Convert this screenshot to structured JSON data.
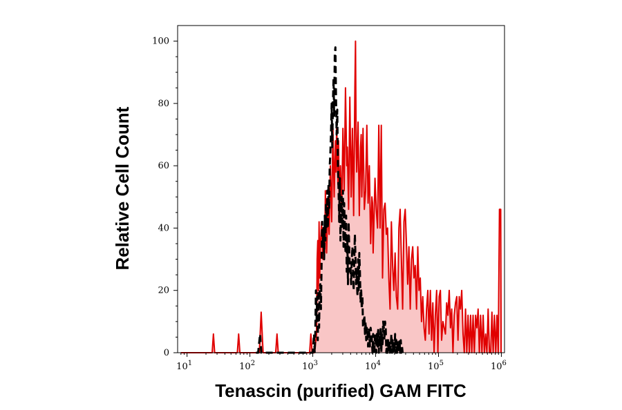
{
  "chart_data": {
    "type": "area",
    "xlabel": "Tenascin (purified) GAM FITC",
    "ylabel": "Relative Cell Count",
    "x_scale": "log",
    "xlim_log10": [
      0.85,
      6.05
    ],
    "ylim": [
      0,
      105
    ],
    "y_ticks": [
      0,
      20,
      40,
      60,
      80,
      100
    ],
    "x_ticks": [
      {
        "value": 10,
        "base": "10",
        "exp": "1"
      },
      {
        "value": 100,
        "base": "10",
        "exp": "2"
      },
      {
        "value": 1000,
        "base": "10",
        "exp": "3"
      },
      {
        "value": 10000,
        "base": "10",
        "exp": "4"
      },
      {
        "value": 100000,
        "base": "10",
        "exp": "5"
      },
      {
        "value": 1000000,
        "base": "10",
        "exp": "6"
      }
    ],
    "series": [
      {
        "style": "sample",
        "color": "#e00000",
        "fill": "#f9c6c6",
        "points": [
          [
            7.94,
            0
          ],
          [
            25.1,
            0
          ],
          [
            26.3,
            6
          ],
          [
            27.5,
            0
          ],
          [
            63.1,
            0
          ],
          [
            66.1,
            6
          ],
          [
            69.2,
            0
          ],
          [
            141,
            0
          ],
          [
            151,
            13
          ],
          [
            162,
            0
          ],
          [
            257,
            0
          ],
          [
            270,
            6
          ],
          [
            282,
            0
          ],
          [
            891,
            0
          ],
          [
            933,
            6
          ],
          [
            977,
            0
          ],
          [
            1070,
            0
          ],
          [
            1148,
            6
          ],
          [
            1175,
            30
          ],
          [
            1202,
            36
          ],
          [
            1230,
            20
          ],
          [
            1259,
            42
          ],
          [
            1288,
            24
          ],
          [
            1318,
            34
          ],
          [
            1380,
            42
          ],
          [
            1445,
            30
          ],
          [
            1479,
            38
          ],
          [
            1549,
            32
          ],
          [
            1585,
            52
          ],
          [
            1660,
            32
          ],
          [
            1738,
            48
          ],
          [
            1820,
            38
          ],
          [
            1905,
            60
          ],
          [
            1995,
            42
          ],
          [
            2089,
            72
          ],
          [
            2188,
            50
          ],
          [
            2291,
            68
          ],
          [
            2344,
            58
          ],
          [
            2399,
            73
          ],
          [
            2512,
            54
          ],
          [
            2570,
            68
          ],
          [
            2630,
            48
          ],
          [
            2754,
            60
          ],
          [
            2884,
            45
          ],
          [
            3020,
            72
          ],
          [
            3162,
            52
          ],
          [
            3311,
            85
          ],
          [
            3467,
            60
          ],
          [
            3548,
            66
          ],
          [
            3715,
            46
          ],
          [
            3890,
            82
          ],
          [
            4074,
            50
          ],
          [
            4266,
            72
          ],
          [
            4467,
            44
          ],
          [
            4677,
            85
          ],
          [
            4786,
            100
          ],
          [
            4898,
            68
          ],
          [
            5012,
            58
          ],
          [
            5248,
            74
          ],
          [
            5495,
            44
          ],
          [
            5754,
            66
          ],
          [
            5888,
            70
          ],
          [
            6026,
            50
          ],
          [
            6310,
            72
          ],
          [
            6607,
            46
          ],
          [
            6918,
            52
          ],
          [
            7244,
            73
          ],
          [
            7586,
            48
          ],
          [
            7943,
            60
          ],
          [
            8318,
            35
          ],
          [
            8710,
            50
          ],
          [
            8913,
            48
          ],
          [
            9120,
            32
          ],
          [
            9772,
            56
          ],
          [
            10233,
            46
          ],
          [
            10715,
            40
          ],
          [
            11220,
            73
          ],
          [
            11749,
            40
          ],
          [
            12303,
            73
          ],
          [
            12882,
            24
          ],
          [
            13490,
            46
          ],
          [
            14125,
            48
          ],
          [
            14791,
            38
          ],
          [
            15488,
            40
          ],
          [
            16218,
            24
          ],
          [
            16982,
            14
          ],
          [
            17783,
            42
          ],
          [
            18621,
            28
          ],
          [
            19498,
            20
          ],
          [
            20417,
            32
          ],
          [
            21380,
            18
          ],
          [
            22387,
            14
          ],
          [
            23442,
            40
          ],
          [
            24547,
            46
          ],
          [
            25704,
            30
          ],
          [
            26915,
            14
          ],
          [
            28184,
            42
          ],
          [
            29512,
            46
          ],
          [
            30903,
            35
          ],
          [
            32359,
            22
          ],
          [
            33884,
            34
          ],
          [
            35481,
            14
          ],
          [
            37154,
            30
          ],
          [
            38905,
            34
          ],
          [
            40738,
            24
          ],
          [
            42658,
            28
          ],
          [
            44668,
            14
          ],
          [
            46774,
            34
          ],
          [
            48978,
            20
          ],
          [
            51286,
            24
          ],
          [
            53703,
            10
          ],
          [
            56234,
            18
          ],
          [
            58884,
            8
          ],
          [
            61660,
            4
          ],
          [
            64565,
            14
          ],
          [
            67608,
            20
          ],
          [
            70795,
            6
          ],
          [
            74131,
            20
          ],
          [
            77625,
            4
          ],
          [
            81283,
            16
          ],
          [
            85114,
            0
          ],
          [
            89125,
            12
          ],
          [
            93325,
            20
          ],
          [
            97724,
            0
          ],
          [
            102329,
            18
          ],
          [
            107152,
            20
          ],
          [
            112202,
            4
          ],
          [
            117490,
            10
          ],
          [
            123027,
            8
          ],
          [
            128825,
            6
          ],
          [
            134896,
            16
          ],
          [
            141254,
            12
          ],
          [
            147911,
            20
          ],
          [
            154882,
            8
          ],
          [
            162181,
            14
          ],
          [
            169824,
            0
          ],
          [
            177828,
            12
          ],
          [
            186209,
            16
          ],
          [
            194984,
            18
          ],
          [
            204174,
            4
          ],
          [
            213796,
            18
          ],
          [
            223872,
            14
          ],
          [
            234423,
            20
          ],
          [
            245471,
            6
          ],
          [
            257040,
            0
          ],
          [
            269153,
            14
          ],
          [
            281838,
            0
          ],
          [
            295121,
            12
          ],
          [
            309030,
            0
          ],
          [
            323594,
            12
          ],
          [
            338844,
            0
          ],
          [
            354813,
            12
          ],
          [
            371535,
            0
          ],
          [
            389045,
            12
          ],
          [
            407380,
            8
          ],
          [
            426580,
            14
          ],
          [
            446684,
            0
          ],
          [
            467735,
            12
          ],
          [
            489779,
            0
          ],
          [
            512861,
            12
          ],
          [
            537032,
            0
          ],
          [
            562341,
            6
          ],
          [
            588844,
            0
          ],
          [
            616595,
            14
          ],
          [
            645654,
            0
          ],
          [
            676083,
            0
          ],
          [
            707946,
            13
          ],
          [
            741310,
            0
          ],
          [
            776247,
            12
          ],
          [
            812831,
            0
          ],
          [
            851138,
            12
          ],
          [
            891251,
            0
          ],
          [
            933254,
            46
          ],
          [
            977237,
            46
          ],
          [
            990000,
            0
          ]
        ]
      },
      {
        "style": "control",
        "color": "#000000",
        "dash": "10 6",
        "points": [
          [
            125,
            0
          ],
          [
            135,
            0
          ],
          [
            145,
            6
          ],
          [
            152,
            0
          ],
          [
            160,
            0
          ],
          [
            1000,
            0
          ],
          [
            1047,
            6
          ],
          [
            1072,
            0
          ],
          [
            1096,
            6
          ],
          [
            1122,
            20
          ],
          [
            1148,
            10
          ],
          [
            1175,
            18
          ],
          [
            1202,
            4
          ],
          [
            1230,
            20
          ],
          [
            1259,
            8
          ],
          [
            1288,
            20
          ],
          [
            1318,
            22
          ],
          [
            1349,
            14
          ],
          [
            1380,
            28
          ],
          [
            1413,
            42
          ],
          [
            1445,
            34
          ],
          [
            1479,
            40
          ],
          [
            1514,
            30
          ],
          [
            1549,
            44
          ],
          [
            1585,
            36
          ],
          [
            1622,
            48
          ],
          [
            1660,
            40
          ],
          [
            1698,
            52
          ],
          [
            1738,
            40
          ],
          [
            1778,
            54
          ],
          [
            1820,
            46
          ],
          [
            1862,
            60
          ],
          [
            1905,
            64
          ],
          [
            1950,
            70
          ],
          [
            1995,
            80
          ],
          [
            2042,
            66
          ],
          [
            2089,
            80
          ],
          [
            2138,
            88
          ],
          [
            2188,
            76
          ],
          [
            2239,
            96
          ],
          [
            2291,
            98
          ],
          [
            2344,
            82
          ],
          [
            2399,
            70
          ],
          [
            2455,
            78
          ],
          [
            2512,
            60
          ],
          [
            2570,
            52
          ],
          [
            2630,
            42
          ],
          [
            2692,
            56
          ],
          [
            2754,
            36
          ],
          [
            2818,
            46
          ],
          [
            2884,
            50
          ],
          [
            2951,
            40
          ],
          [
            3020,
            52
          ],
          [
            3090,
            34
          ],
          [
            3162,
            48
          ],
          [
            3236,
            40
          ],
          [
            3311,
            32
          ],
          [
            3388,
            44
          ],
          [
            3467,
            26
          ],
          [
            3548,
            36
          ],
          [
            3631,
            22
          ],
          [
            3715,
            42
          ],
          [
            3802,
            34
          ],
          [
            3890,
            26
          ],
          [
            3981,
            28
          ],
          [
            4074,
            22
          ],
          [
            4169,
            30
          ],
          [
            4266,
            34
          ],
          [
            4365,
            26
          ],
          [
            4467,
            20
          ],
          [
            4571,
            30
          ],
          [
            4677,
            38
          ],
          [
            4786,
            30
          ],
          [
            4898,
            22
          ],
          [
            5012,
            26
          ],
          [
            5129,
            18
          ],
          [
            5248,
            30
          ],
          [
            5370,
            20
          ],
          [
            5495,
            32
          ],
          [
            5623,
            26
          ],
          [
            5754,
            16
          ],
          [
            5888,
            20
          ],
          [
            6026,
            14
          ],
          [
            6166,
            18
          ],
          [
            6310,
            8
          ],
          [
            6457,
            10
          ],
          [
            6607,
            12
          ],
          [
            6761,
            6
          ],
          [
            6918,
            10
          ],
          [
            7079,
            4
          ],
          [
            7244,
            8
          ],
          [
            7413,
            6
          ],
          [
            7586,
            2
          ],
          [
            7763,
            8
          ],
          [
            7943,
            6
          ],
          [
            8128,
            2
          ],
          [
            8318,
            8
          ],
          [
            8511,
            6
          ],
          [
            8710,
            4
          ],
          [
            8913,
            0
          ],
          [
            9120,
            6
          ],
          [
            9333,
            2
          ],
          [
            9550,
            0
          ],
          [
            9772,
            6
          ],
          [
            10000,
            4
          ],
          [
            10233,
            0
          ],
          [
            10471,
            6
          ],
          [
            10715,
            2
          ],
          [
            10965,
            8
          ],
          [
            11220,
            0
          ],
          [
            11482,
            6
          ],
          [
            11749,
            2
          ],
          [
            12023,
            8
          ],
          [
            12303,
            0
          ],
          [
            12589,
            6
          ],
          [
            12882,
            2
          ],
          [
            13183,
            10
          ],
          [
            13490,
            8
          ],
          [
            13804,
            4
          ],
          [
            14125,
            10
          ],
          [
            14454,
            8
          ],
          [
            14791,
            0
          ],
          [
            15136,
            4
          ],
          [
            15488,
            0
          ],
          [
            15849,
            4
          ],
          [
            16218,
            0
          ],
          [
            16596,
            4
          ],
          [
            16982,
            0
          ],
          [
            17378,
            2
          ],
          [
            17783,
            6
          ],
          [
            18197,
            0
          ],
          [
            18621,
            4
          ],
          [
            19055,
            0
          ],
          [
            19498,
            4
          ],
          [
            19953,
            0
          ],
          [
            20417,
            6
          ],
          [
            20893,
            0
          ],
          [
            21380,
            4
          ],
          [
            21878,
            0
          ],
          [
            22387,
            4
          ],
          [
            22909,
            2
          ],
          [
            23442,
            0
          ],
          [
            23988,
            4
          ],
          [
            24547,
            0
          ],
          [
            25119,
            4
          ],
          [
            25704,
            0
          ],
          [
            26303,
            2
          ],
          [
            26915,
            0
          ]
        ]
      }
    ]
  }
}
